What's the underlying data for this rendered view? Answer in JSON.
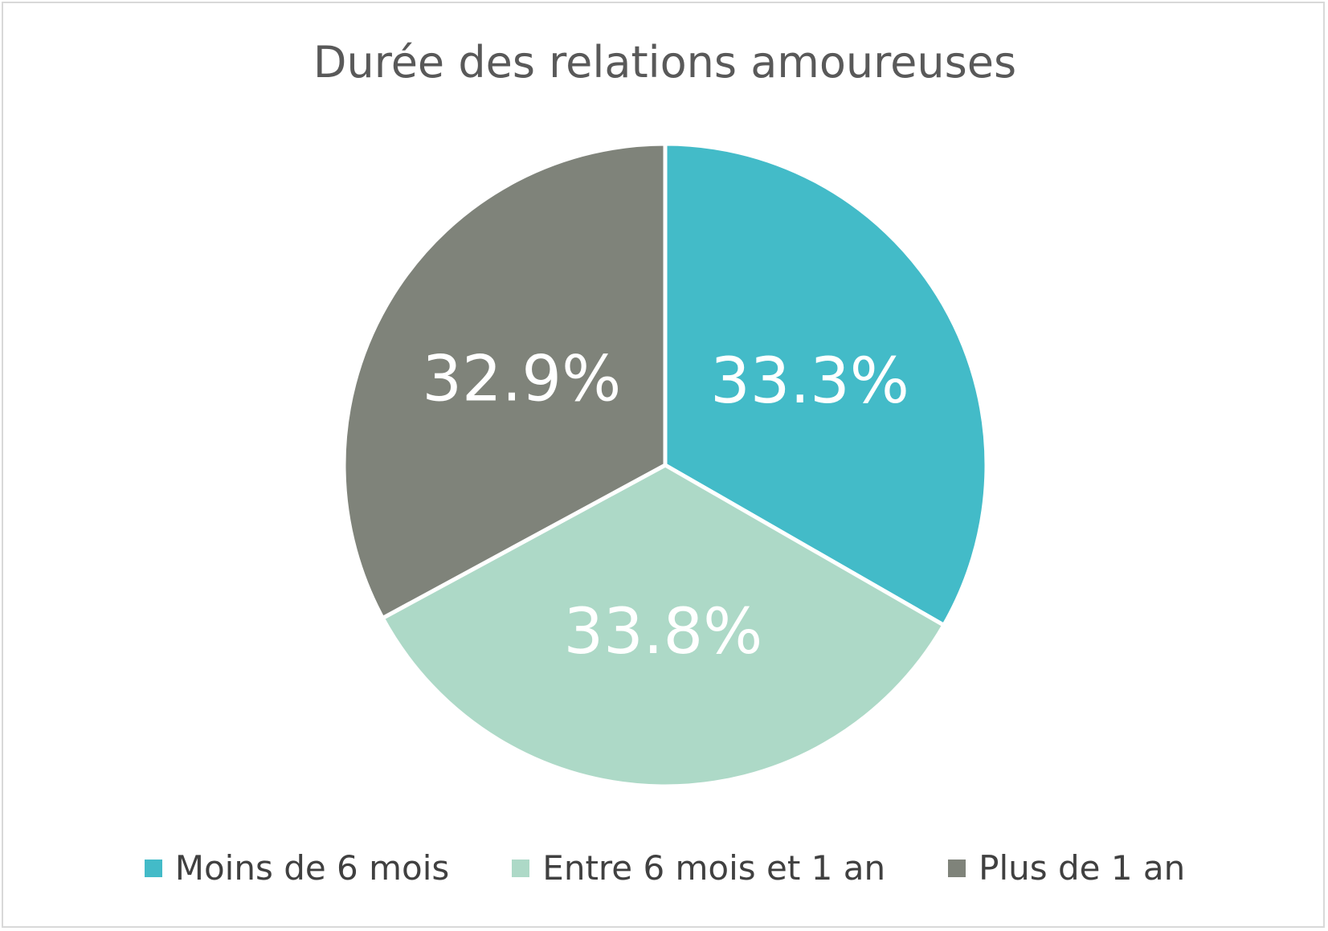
{
  "chart_data": {
    "type": "pie",
    "title": "Durée des relations amoureuses",
    "slices": [
      {
        "label": "Moins de 6 mois",
        "value": 33.3,
        "display": "33.3%",
        "color": "#43BBC8"
      },
      {
        "label": "Entre 6 mois et 1 an",
        "value": 33.8,
        "display": "33.8%",
        "color": "#ADD9C7"
      },
      {
        "label": "Plus de 1 an",
        "value": 32.9,
        "display": "32.9%",
        "color": "#7F837A"
      }
    ],
    "start_angle": "12 o'clock",
    "direction": "clockwise",
    "legend_position": "bottom"
  }
}
